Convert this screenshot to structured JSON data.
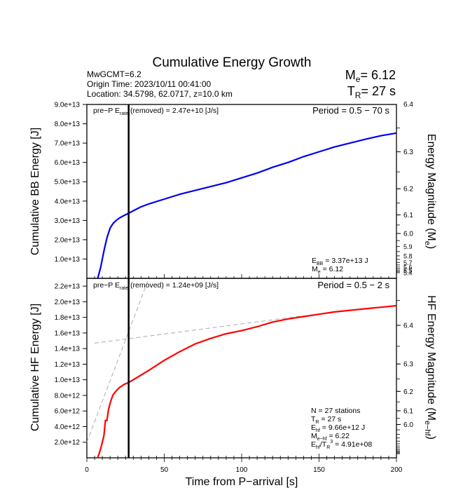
{
  "header": {
    "title": "Cumulative Energy Growth",
    "event_info": [
      "MwGCMT=6.2",
      "Origin Time: 2023/10/11 00:41:00",
      "Location: 34.5798, 62.0717, z=10.0 km"
    ],
    "me_label": "M",
    "me_sub": "e",
    "me_value": "= 6.12",
    "tr_label": "T",
    "tr_sub": "R",
    "tr_value": "= 27 s"
  },
  "chart_data": [
    {
      "type": "line",
      "name": "broadband",
      "title": "Cumulative Energy Growth",
      "ylabel": "Cumulative BB Energy [J]",
      "y2label": "Energy Magnitude (M_e)",
      "y2label_main": "Energy Magnitude (M",
      "y2label_sub": "e",
      "y2label_end": ")",
      "xlim": [
        0,
        200
      ],
      "ylim": [
        0,
        90000000000000.0
      ],
      "yticks": [
        10000000000000.0,
        20000000000000.0,
        30000000000000.0,
        40000000000000.0,
        50000000000000.0,
        60000000000000.0,
        70000000000000.0,
        80000000000000.0,
        90000000000000.0
      ],
      "ytick_labels": [
        "1.0e+13",
        "2.0e+13",
        "3.0e+13",
        "4.0e+13",
        "5.0e+13",
        "6.0e+13",
        "7.0e+13",
        "8.0e+13",
        "9.0e+13"
      ],
      "y2ticks": [
        6.0,
        6.1,
        6.2,
        6.3,
        6.4
      ],
      "y2tick_labels": [
        "6.0",
        "6.1",
        "6.2",
        "6.3",
        "6.4"
      ],
      "y2minor_labels": [
        "5.9",
        "5.8",
        "5.7",
        "5.6",
        "5.5",
        "5.4"
      ],
      "line_color": "#0000ee",
      "series": [
        {
          "name": "BB energy",
          "x": [
            7,
            9,
            11,
            13,
            15,
            17,
            19,
            21,
            24,
            27,
            30,
            35,
            40,
            50,
            60,
            70,
            80,
            90,
            100,
            110,
            120,
            130,
            140,
            150,
            160,
            170,
            180,
            190,
            200
          ],
          "values": [
            0,
            6000000000000.0,
            14000000000000.0,
            21000000000000.0,
            26000000000000.0,
            28500000000000.0,
            30000000000000.0,
            31200000000000.0,
            32500000000000.0,
            33700000000000.0,
            35000000000000.0,
            37000000000000.0,
            38500000000000.0,
            41000000000000.0,
            43500000000000.0,
            45500000000000.0,
            47500000000000.0,
            49500000000000.0,
            52000000000000.0,
            54500000000000.0,
            57500000000000.0,
            60000000000000.0,
            63000000000000.0,
            65500000000000.0,
            68000000000000.0,
            70000000000000.0,
            72000000000000.0,
            73800000000000.0,
            75200000000000.0
          ]
        }
      ],
      "vline_x": 27,
      "annotation_left_pre": "pre−P E",
      "annotation_left_sub": "rate",
      "annotation_left_post": " (removed) = 2.47e+10 [J/s]",
      "period": "Period = 0.5 − 70 s",
      "stats": [
        {
          "main": "E",
          "sub": "BB",
          "rest": " = 3.37e+13 J"
        },
        {
          "main": "M",
          "sub": "e",
          "rest": " = 6.12"
        }
      ]
    },
    {
      "type": "line",
      "name": "high-frequency",
      "ylabel": "Cumulative HF Energy [J]",
      "y2label_main": "HF Energy Magnitude (M",
      "y2label_sub": "e−hf",
      "y2label_end": ")",
      "xlabel": "Time from P−arrival [s]",
      "xlim": [
        0,
        200
      ],
      "xticks": [
        0,
        50,
        100,
        150,
        200
      ],
      "xtick_labels": [
        "0",
        "50",
        "100",
        "150",
        "200"
      ],
      "ylim": [
        0,
        23000000000000.0
      ],
      "yticks": [
        2000000000000.0,
        4000000000000.0,
        6000000000000.0,
        8000000000000.0,
        10000000000000.0,
        12000000000000.0,
        14000000000000.0,
        16000000000000.0,
        18000000000000.0,
        20000000000000.0,
        22000000000000.0
      ],
      "ytick_labels": [
        "2.0e+12",
        "4.0e+12",
        "6.0e+12",
        "8.0e+12",
        "1.0e+13",
        "1.2e+13",
        "1.4e+13",
        "1.6e+13",
        "1.8e+13",
        "2.0e+13",
        "2.2e+13"
      ],
      "y2ticks": [
        6.0,
        6.1,
        6.2,
        6.3,
        6.4
      ],
      "y2tick_labels": [
        "6.0",
        "6.1",
        "6.2",
        "6.3",
        "6.4"
      ],
      "line_color": "#ff0000",
      "series": [
        {
          "name": "HF energy",
          "x": [
            7,
            9,
            11,
            12,
            13,
            14,
            15,
            16,
            17,
            19,
            21,
            24,
            27,
            30,
            35,
            40,
            50,
            60,
            70,
            80,
            90,
            100,
            110,
            120,
            130,
            140,
            150,
            160,
            170,
            180,
            190,
            200
          ],
          "values": [
            0,
            1200000000000.0,
            2800000000000.0,
            4800000000000.0,
            4800000000000.0,
            6200000000000.0,
            7000000000000.0,
            7600000000000.0,
            8100000000000.0,
            8600000000000.0,
            9000000000000.0,
            9400000000000.0,
            9660000000000.0,
            10000000000000.0,
            10600000000000.0,
            11200000000000.0,
            12500000000000.0,
            13600000000000.0,
            14600000000000.0,
            15300000000000.0,
            15900000000000.0,
            16300000000000.0,
            16800000000000.0,
            17400000000000.0,
            17800000000000.0,
            18100000000000.0,
            18400000000000.0,
            18700000000000.0,
            18900000000000.0,
            19100000000000.0,
            19300000000000.0,
            19500000000000.0
          ]
        }
      ],
      "fit_lines": [
        {
          "name": "early-slope",
          "x": [
            0,
            40
          ],
          "values": [
            2000000000000.0,
            23000000000000.0
          ]
        },
        {
          "name": "late-slope",
          "x": [
            5,
            140
          ],
          "values": [
            14700000000000.0,
            18200000000000.0
          ]
        }
      ],
      "vline_x": 27,
      "annotation_left_pre": "pre−P E",
      "annotation_left_sub": "rate",
      "annotation_left_post": " (removed) = 1.24e+09 [J/s]",
      "period": "Period = 0.5 − 2 s",
      "stats": [
        {
          "main": "N = 27 stations",
          "sub": "",
          "rest": ""
        },
        {
          "main": "T",
          "sub": "R",
          "rest": " = 27  s"
        },
        {
          "main": "E",
          "sub": "hf",
          "rest": " = 9.66e+12 J"
        },
        {
          "main": "M",
          "sub": "e−hf",
          "rest": " = 6.22"
        },
        {
          "main": "E",
          "sub": "hf",
          "rest": "/T",
          "sub2": "R",
          "sup": "3",
          "rest2": " =  4.91e+08"
        }
      ]
    }
  ]
}
